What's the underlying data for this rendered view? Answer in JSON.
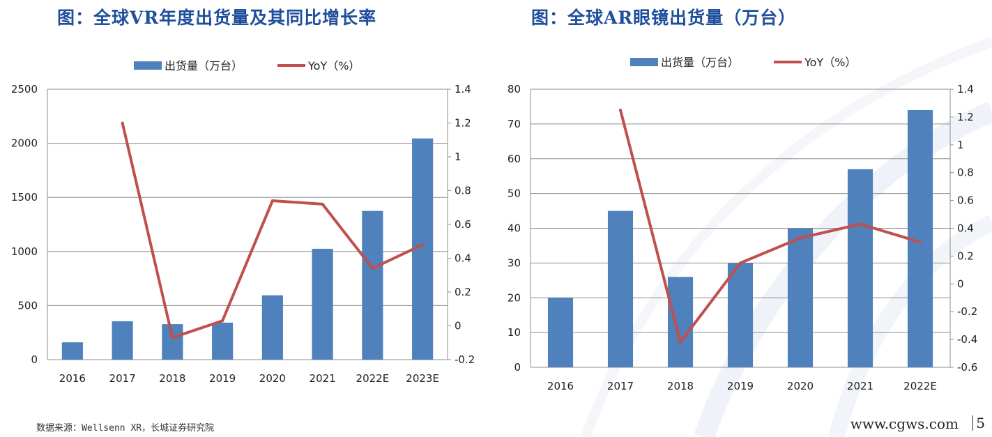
{
  "colors": {
    "bar": "#4f81bd",
    "line": "#c0504d",
    "title": "#1f4e9c"
  },
  "chart_data": [
    {
      "type": "bar",
      "title": "图：全球VR年度出货量及其同比增长率",
      "categories": [
        "2016",
        "2017",
        "2018",
        "2019",
        "2020",
        "2021",
        "2022E",
        "2023E"
      ],
      "series": [
        {
          "name": "出货量（万台）",
          "type": "bar",
          "axis": "left",
          "values": [
            160,
            355,
            328,
            342,
            595,
            1025,
            1375,
            2045
          ]
        },
        {
          "name": "YoY（%）",
          "type": "line",
          "axis": "right",
          "values": [
            null,
            1.2,
            -0.07,
            0.03,
            0.74,
            0.72,
            0.34,
            0.48
          ]
        }
      ],
      "ylim": [
        0,
        2500
      ],
      "yticks": [
        "0",
        "500",
        "1000",
        "1500",
        "2000",
        "2500"
      ],
      "y2lim": [
        -0.2,
        1.4
      ],
      "y2ticks": [
        "-0.2",
        "0",
        "0.2",
        "0.4",
        "0.6",
        "0.8",
        "1",
        "1.2",
        "1.4"
      ],
      "grid": true,
      "legend": "top-center"
    },
    {
      "type": "bar",
      "title": "图：全球AR眼镜出货量（万台）",
      "categories": [
        "2016",
        "2017",
        "2018",
        "2019",
        "2020",
        "2021",
        "2022E"
      ],
      "series": [
        {
          "name": "出货量（万台）",
          "type": "bar",
          "axis": "left",
          "values": [
            20,
            45,
            26,
            30,
            40,
            57,
            74
          ]
        },
        {
          "name": "YoY（%）",
          "type": "line",
          "axis": "right",
          "values": [
            null,
            1.25,
            -0.42,
            0.15,
            0.33,
            0.43,
            0.3
          ]
        }
      ],
      "ylim": [
        0,
        80
      ],
      "yticks": [
        "0",
        "10",
        "20",
        "30",
        "40",
        "50",
        "60",
        "70",
        "80"
      ],
      "y2lim": [
        -0.6,
        1.4
      ],
      "y2ticks": [
        "-0.6",
        "-0.4",
        "-0.2",
        "0",
        "0.2",
        "0.4",
        "0.6",
        "0.8",
        "1",
        "1.2",
        "1.4"
      ],
      "grid": true,
      "legend": "top-center"
    }
  ],
  "footer": {
    "source": "数据来源：Wellsenn XR，长城证券研究院",
    "website": "www.cgws.com",
    "page": "5"
  }
}
